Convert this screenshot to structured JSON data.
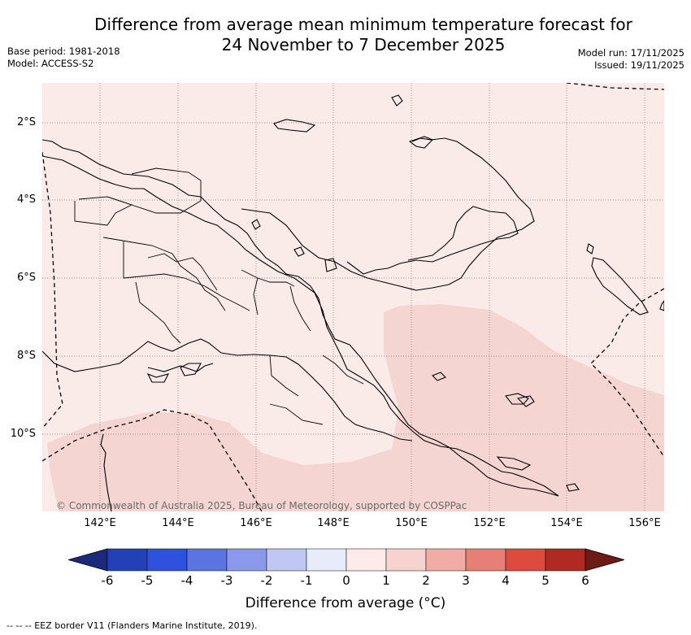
{
  "title": {
    "line1": "Difference from average mean minimum temperature forecast for",
    "line2": "24 November to 7 December 2025"
  },
  "meta": {
    "base_period": "Base period: 1981-2018",
    "model": "Model: ACCESS-S2",
    "model_run": "Model run: 17/11/2025",
    "issued": "Issued: 19/11/2025"
  },
  "map": {
    "lat_labels": [
      "2°S",
      "4°S",
      "6°S",
      "8°S",
      "10°S"
    ],
    "lon_labels": [
      "142°E",
      "144°E",
      "146°E",
      "148°E",
      "150°E",
      "152°E",
      "154°E",
      "156°E"
    ],
    "copyright": "© Commonwealth of Australia 2025, Bureau of Meteorology, supported by COSPPac",
    "colors": {
      "base_fill": "#fbebe8",
      "warm_fill": "#f5d5d1",
      "coast": "#000000",
      "grid": "#777777"
    }
  },
  "colorbar": {
    "ticks": [
      "-6",
      "-5",
      "-4",
      "-3",
      "-2",
      "-1",
      "0",
      "1",
      "2",
      "3",
      "4",
      "5",
      "6"
    ],
    "label": "Difference from average (°C)",
    "colors": [
      "#1b2a7a",
      "#2440b8",
      "#2f52de",
      "#5a74e4",
      "#8a99ec",
      "#c0c7f3",
      "#e8ebfa",
      "#fcebe8",
      "#f6d3ce",
      "#f0aca5",
      "#e77f76",
      "#dc4b3e",
      "#b02a22",
      "#6e1a15"
    ]
  },
  "footnote": "--  --  -- EEZ border V11 (Flanders Marine Institute, 2019)."
}
